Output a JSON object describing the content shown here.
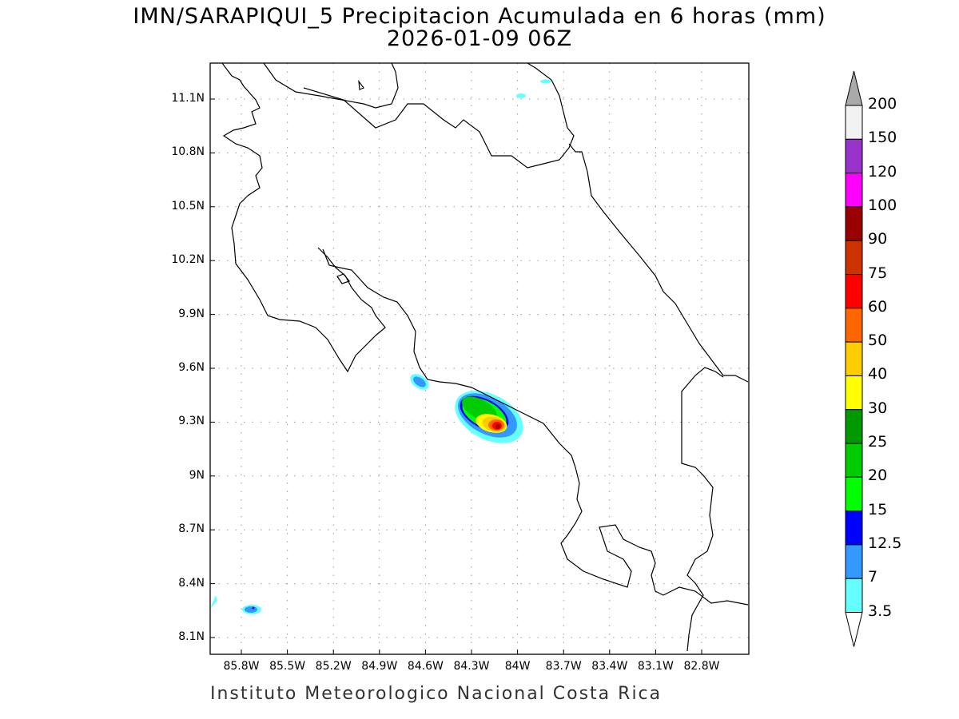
{
  "title": "IMN/SARAPIQUI_5 Precipitacion Acumulada en 6 horas (mm)",
  "subtitle": "2026-01-09 06Z",
  "footer": "Instituto Meteorologico Nacional Costa Rica",
  "map": {
    "lat_ticks": [
      "11.1N",
      "10.8N",
      "10.5N",
      "10.2N",
      "9.9N",
      "9.6N",
      "9.3N",
      "9N",
      "8.7N",
      "8.4N",
      "8.1N"
    ],
    "lon_ticks": [
      "85.8W",
      "85.5W",
      "85.2W",
      "84.9W",
      "84.6W",
      "84.3W",
      "84W",
      "83.7W",
      "83.4W",
      "83.1W",
      "82.8W"
    ],
    "grid": "dotted"
  },
  "colorbar": {
    "labels": [
      "200",
      "150",
      "120",
      "100",
      "90",
      "75",
      "60",
      "50",
      "40",
      "30",
      "25",
      "20",
      "15",
      "12.5",
      "7",
      "3.5"
    ],
    "colors": [
      "#f2f2f2",
      "#9933cc",
      "#ff00ff",
      "#990000",
      "#cc3300",
      "#ff0000",
      "#ff6600",
      "#ffcc00",
      "#ffff00",
      "#009900",
      "#00cc00",
      "#00ff00",
      "#0000ff",
      "#3399ff",
      "#66ffff"
    ],
    "over_color": "#aaaaaa",
    "under_color": "#ffffff"
  }
}
